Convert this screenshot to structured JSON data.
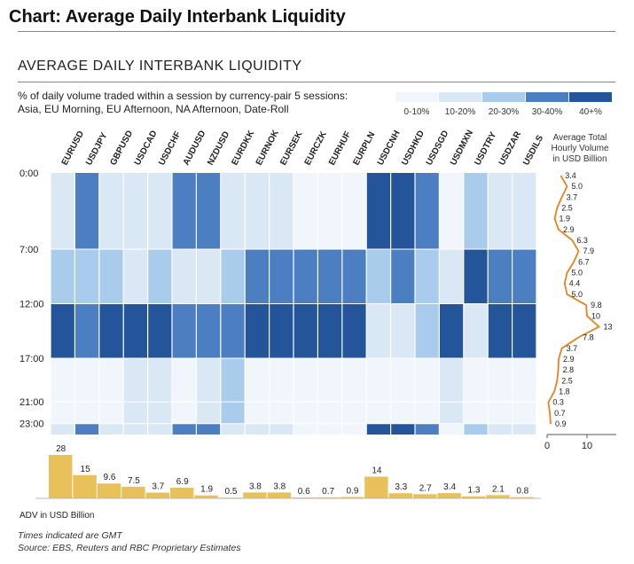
{
  "page_title": "Chart: Average Daily Interbank Liquidity",
  "chart_title": "AVERAGE DAILY INTERBANK LIQUIDITY",
  "subtitle": "% of daily volume traded within a session by currency-pair 5 sessions: Asia, EU Morning, EU Afternoon, NA Afternoon, Date-Roll",
  "legend": [
    {
      "label": "0-10%",
      "color": "#f1f6fc"
    },
    {
      "label": "10-20%",
      "color": "#dae8f6"
    },
    {
      "label": "20-30%",
      "color": "#aaccec"
    },
    {
      "label": "30-40%",
      "color": "#4b7fc1"
    },
    {
      "label": "40+%",
      "color": "#24559a"
    }
  ],
  "footnotes": [
    "Times indicated are GMT",
    "Source: EBS, Reuters and RBC Proprietary Estimates"
  ],
  "chart_data": [
    {
      "type": "heatmap",
      "title": "AVERAGE DAILY INTERBANK LIQUIDITY",
      "x_categories": [
        "EURUSD",
        "USDJPY",
        "GBPUSD",
        "USDCAD",
        "USDCHF",
        "AUDUSD",
        "NZDUSD",
        "EURDKK",
        "EURNOK",
        "EURSEK",
        "EURCZK",
        "EURHUF",
        "EURPLN",
        "USDCNH",
        "USDHKD",
        "USDSGD",
        "USDMXN",
        "USDTRY",
        "USDZAR",
        "USDILS"
      ],
      "y_tick_labels": [
        "0:00",
        "7:00",
        "12:00",
        "17:00",
        "21:00",
        "23:00"
      ],
      "sessions": [
        {
          "start": "0:00",
          "end": "7:00",
          "levels": [
            1,
            3,
            1,
            1,
            1,
            3,
            3,
            1,
            1,
            1,
            0,
            0,
            0,
            4,
            4,
            3,
            0,
            2,
            1,
            1
          ]
        },
        {
          "start": "7:00",
          "end": "12:00",
          "levels": [
            2,
            2,
            2,
            1,
            2,
            1,
            1,
            2,
            3,
            3,
            3,
            3,
            3,
            2,
            3,
            2,
            1,
            4,
            3,
            3
          ]
        },
        {
          "start": "12:00",
          "end": "17:00",
          "levels": [
            4,
            3,
            4,
            4,
            4,
            3,
            3,
            3,
            4,
            4,
            4,
            4,
            4,
            1,
            1,
            2,
            4,
            1,
            4,
            4
          ]
        },
        {
          "start": "17:00",
          "end": "23:00",
          "levels": [
            0,
            0,
            0,
            1,
            1,
            0,
            1,
            2,
            0,
            0,
            0,
            0,
            0,
            0,
            0,
            0,
            1,
            0,
            0,
            0
          ]
        },
        {
          "start": "23:00",
          "end": "24:00",
          "levels": [
            1,
            3,
            1,
            1,
            1,
            3,
            3,
            1,
            1,
            1,
            0,
            0,
            0,
            4,
            4,
            3,
            0,
            2,
            1,
            1
          ]
        }
      ]
    },
    {
      "type": "bar",
      "xlabel": "ADV in USD Billion",
      "categories": [
        "EURUSD",
        "USDJPY",
        "GBPUSD",
        "USDCAD",
        "USDCHF",
        "AUDUSD",
        "NZDUSD",
        "EURDKK",
        "EURNOK",
        "EURSEK",
        "EURCZK",
        "EURHUF",
        "EURPLN",
        "USDCNH",
        "USDHKD",
        "USDSGD",
        "USDMXN",
        "USDTRY",
        "USDZAR",
        "USDILS"
      ],
      "values": [
        28,
        15,
        9.6,
        7.5,
        3.7,
        6.9,
        1.9,
        0.5,
        3.8,
        3.8,
        0.6,
        0.7,
        0.9,
        14,
        3.3,
        2.7,
        3.4,
        1.3,
        2.1,
        0.8
      ],
      "labels": [
        "28",
        "15",
        "9.6",
        "7.5",
        "3.7",
        "6.9",
        "1.9",
        "0.5",
        "3.8",
        "3.8",
        "0.6",
        "0.7",
        "0.9",
        "14",
        "3.3",
        "2.7",
        "3.4",
        "1.3",
        "2.1",
        "0.8"
      ],
      "color": "#e8c15a"
    },
    {
      "type": "line",
      "title": "Average Total Hourly Volume in USD Billion",
      "x_ticks": [
        "0",
        "10"
      ],
      "xlim": [
        0,
        15
      ],
      "hours": [
        0,
        1,
        2,
        3,
        4,
        5,
        6,
        7,
        8,
        9,
        10,
        11,
        12,
        13,
        14,
        15,
        16,
        17,
        18,
        19,
        20,
        21,
        22,
        23
      ],
      "values": [
        3.4,
        5.0,
        3.7,
        2.5,
        1.9,
        2.9,
        6.3,
        7.9,
        6.7,
        5.0,
        4.4,
        5.0,
        9.8,
        10,
        13,
        7.8,
        3.7,
        2.9,
        2.8,
        2.5,
        1.8,
        0.3,
        0.7,
        0.9
      ],
      "labels": [
        "3.4",
        "5.0",
        "3.7",
        "2.5",
        "1.9",
        "2.9",
        "6.3",
        "7.9",
        "6.7",
        "5.0",
        "4.4",
        "5.0",
        "9.8",
        "10",
        "13",
        "7.8",
        "3.7",
        "2.9",
        "2.8",
        "2.5",
        "1.8",
        "0.3",
        "0.7",
        "0.9"
      ],
      "color": "#e8821e"
    }
  ]
}
